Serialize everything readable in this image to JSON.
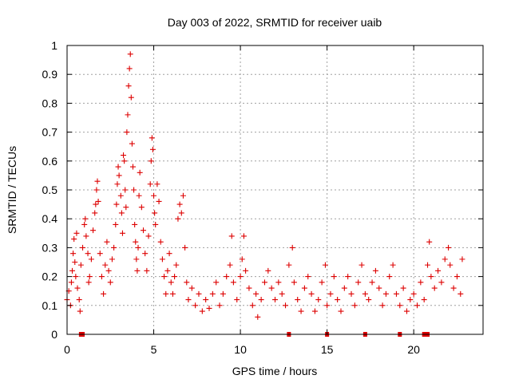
{
  "chart_data": {
    "type": "scatter",
    "title": "Day 003 of 2022, SRMTID for receiver uaib",
    "xlabel": "GPS time / hours",
    "ylabel": "SRMTID / TECUs",
    "xlim": [
      0,
      24
    ],
    "ylim": [
      0,
      1
    ],
    "xticks": [
      0,
      5,
      10,
      15,
      20
    ],
    "yticks": [
      0,
      0.1,
      0.2,
      0.3,
      0.4,
      0.5,
      0.6,
      0.7,
      0.8,
      0.9,
      1
    ],
    "xtick_labels": [
      "0",
      "5",
      "10",
      "15",
      "20"
    ],
    "ytick_labels": [
      "0",
      "0.1",
      "0.2",
      "0.3",
      "0.4",
      "0.5",
      "0.6",
      "0.7",
      "0.8",
      "0.9",
      "1"
    ],
    "grid": true,
    "marker": "plus",
    "color": "#dd0000",
    "series": [
      {
        "name": "SRMTID",
        "points": [
          [
            0.0,
            0.12
          ],
          [
            0.1,
            0.15
          ],
          [
            0.2,
            0.1
          ],
          [
            0.25,
            0.18
          ],
          [
            0.3,
            0.22
          ],
          [
            0.35,
            0.28
          ],
          [
            0.4,
            0.33
          ],
          [
            0.45,
            0.25
          ],
          [
            0.5,
            0.2
          ],
          [
            0.55,
            0.35
          ],
          [
            0.6,
            0.16
          ],
          [
            0.7,
            0.12
          ],
          [
            0.75,
            0.08
          ],
          [
            0.8,
            0.24
          ],
          [
            0.9,
            0.3
          ],
          [
            1.0,
            0.38
          ],
          [
            1.05,
            0.4
          ],
          [
            1.1,
            0.34
          ],
          [
            1.2,
            0.28
          ],
          [
            1.25,
            0.18
          ],
          [
            1.3,
            0.2
          ],
          [
            1.4,
            0.26
          ],
          [
            1.5,
            0.36
          ],
          [
            1.6,
            0.42
          ],
          [
            1.65,
            0.45
          ],
          [
            1.7,
            0.5
          ],
          [
            1.75,
            0.53
          ],
          [
            1.8,
            0.46
          ],
          [
            1.9,
            0.28
          ],
          [
            2.0,
            0.2
          ],
          [
            2.1,
            0.14
          ],
          [
            2.2,
            0.24
          ],
          [
            2.3,
            0.32
          ],
          [
            2.4,
            0.22
          ],
          [
            2.5,
            0.18
          ],
          [
            2.6,
            0.26
          ],
          [
            2.7,
            0.3
          ],
          [
            2.8,
            0.38
          ],
          [
            2.85,
            0.45
          ],
          [
            2.9,
            0.52
          ],
          [
            2.95,
            0.58
          ],
          [
            3.0,
            0.55
          ],
          [
            3.1,
            0.48
          ],
          [
            3.15,
            0.42
          ],
          [
            3.2,
            0.35
          ],
          [
            3.25,
            0.62
          ],
          [
            3.3,
            0.6
          ],
          [
            3.35,
            0.5
          ],
          [
            3.4,
            0.44
          ],
          [
            3.45,
            0.7
          ],
          [
            3.5,
            0.76
          ],
          [
            3.55,
            0.86
          ],
          [
            3.6,
            0.92
          ],
          [
            3.65,
            0.97
          ],
          [
            3.7,
            0.82
          ],
          [
            3.75,
            0.66
          ],
          [
            3.8,
            0.58
          ],
          [
            3.85,
            0.5
          ],
          [
            3.9,
            0.38
          ],
          [
            3.95,
            0.32
          ],
          [
            4.0,
            0.26
          ],
          [
            4.05,
            0.22
          ],
          [
            4.1,
            0.3
          ],
          [
            4.15,
            0.48
          ],
          [
            4.2,
            0.56
          ],
          [
            4.3,
            0.44
          ],
          [
            4.4,
            0.36
          ],
          [
            4.5,
            0.28
          ],
          [
            4.6,
            0.22
          ],
          [
            4.7,
            0.34
          ],
          [
            4.8,
            0.52
          ],
          [
            4.85,
            0.6
          ],
          [
            4.9,
            0.68
          ],
          [
            4.95,
            0.64
          ],
          [
            5.0,
            0.48
          ],
          [
            5.05,
            0.42
          ],
          [
            5.1,
            0.38
          ],
          [
            5.2,
            0.52
          ],
          [
            5.3,
            0.46
          ],
          [
            5.4,
            0.32
          ],
          [
            5.5,
            0.26
          ],
          [
            5.6,
            0.2
          ],
          [
            5.7,
            0.14
          ],
          [
            5.8,
            0.22
          ],
          [
            5.9,
            0.28
          ],
          [
            6.0,
            0.18
          ],
          [
            6.1,
            0.14
          ],
          [
            6.2,
            0.2
          ],
          [
            6.3,
            0.24
          ],
          [
            6.4,
            0.4
          ],
          [
            6.5,
            0.45
          ],
          [
            6.6,
            0.42
          ],
          [
            6.7,
            0.48
          ],
          [
            6.8,
            0.3
          ],
          [
            6.9,
            0.18
          ],
          [
            7.0,
            0.12
          ],
          [
            7.2,
            0.16
          ],
          [
            7.4,
            0.1
          ],
          [
            7.6,
            0.14
          ],
          [
            7.8,
            0.08
          ],
          [
            8.0,
            0.12
          ],
          [
            8.2,
            0.09
          ],
          [
            8.4,
            0.14
          ],
          [
            8.6,
            0.18
          ],
          [
            8.8,
            0.1
          ],
          [
            9.0,
            0.14
          ],
          [
            9.2,
            0.2
          ],
          [
            9.4,
            0.24
          ],
          [
            9.5,
            0.34
          ],
          [
            9.6,
            0.18
          ],
          [
            9.8,
            0.12
          ],
          [
            10.0,
            0.2
          ],
          [
            10.1,
            0.26
          ],
          [
            10.2,
            0.34
          ],
          [
            10.3,
            0.22
          ],
          [
            10.5,
            0.16
          ],
          [
            10.7,
            0.1
          ],
          [
            10.9,
            0.14
          ],
          [
            11.0,
            0.06
          ],
          [
            11.2,
            0.12
          ],
          [
            11.4,
            0.18
          ],
          [
            11.6,
            0.22
          ],
          [
            11.8,
            0.16
          ],
          [
            12.0,
            0.12
          ],
          [
            12.2,
            0.18
          ],
          [
            12.4,
            0.14
          ],
          [
            12.6,
            0.1
          ],
          [
            12.8,
            0.24
          ],
          [
            13.0,
            0.3
          ],
          [
            13.1,
            0.18
          ],
          [
            13.3,
            0.12
          ],
          [
            13.5,
            0.08
          ],
          [
            13.7,
            0.16
          ],
          [
            13.9,
            0.2
          ],
          [
            14.1,
            0.14
          ],
          [
            14.3,
            0.08
          ],
          [
            14.5,
            0.12
          ],
          [
            14.7,
            0.18
          ],
          [
            14.9,
            0.24
          ],
          [
            15.0,
            0.1
          ],
          [
            15.2,
            0.14
          ],
          [
            15.4,
            0.2
          ],
          [
            15.6,
            0.12
          ],
          [
            15.8,
            0.08
          ],
          [
            16.0,
            0.16
          ],
          [
            16.2,
            0.2
          ],
          [
            16.4,
            0.14
          ],
          [
            16.6,
            0.1
          ],
          [
            16.8,
            0.18
          ],
          [
            17.0,
            0.24
          ],
          [
            17.2,
            0.14
          ],
          [
            17.4,
            0.12
          ],
          [
            17.6,
            0.18
          ],
          [
            17.8,
            0.22
          ],
          [
            18.0,
            0.16
          ],
          [
            18.2,
            0.1
          ],
          [
            18.4,
            0.14
          ],
          [
            18.6,
            0.2
          ],
          [
            18.8,
            0.24
          ],
          [
            19.0,
            0.14
          ],
          [
            19.2,
            0.1
          ],
          [
            19.4,
            0.16
          ],
          [
            19.6,
            0.08
          ],
          [
            19.8,
            0.12
          ],
          [
            20.0,
            0.14
          ],
          [
            20.2,
            0.1
          ],
          [
            20.4,
            0.18
          ],
          [
            20.6,
            0.12
          ],
          [
            20.8,
            0.24
          ],
          [
            20.9,
            0.32
          ],
          [
            21.0,
            0.2
          ],
          [
            21.2,
            0.16
          ],
          [
            21.4,
            0.22
          ],
          [
            21.6,
            0.18
          ],
          [
            21.8,
            0.26
          ],
          [
            22.0,
            0.3
          ],
          [
            22.1,
            0.24
          ],
          [
            22.3,
            0.16
          ],
          [
            22.5,
            0.2
          ],
          [
            22.7,
            0.14
          ],
          [
            22.8,
            0.26
          ]
        ]
      }
    ],
    "gaps_markers": [
      {
        "name": "data-gap",
        "x": [
          0.8,
          0.9,
          12.8,
          15.0,
          17.2,
          19.2,
          20.6,
          20.7,
          20.8
        ]
      }
    ]
  }
}
